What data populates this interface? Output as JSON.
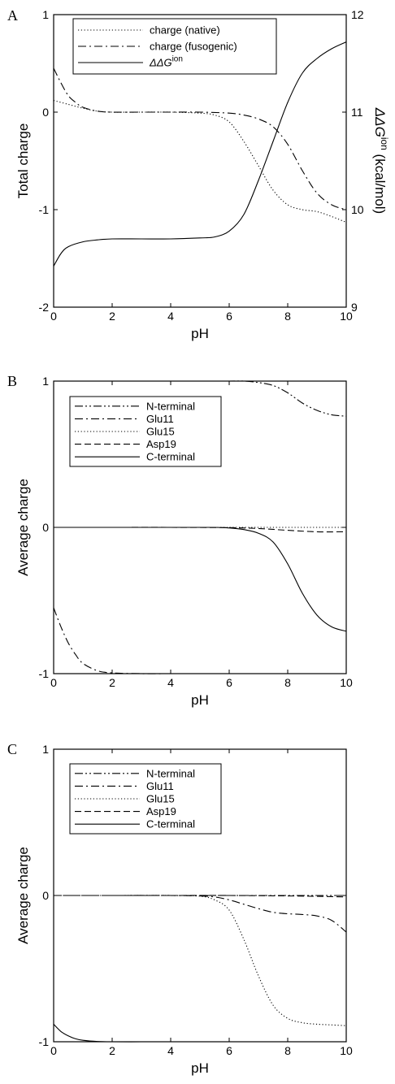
{
  "chart_data": [
    {
      "panel": "A",
      "type": "line",
      "xlabel": "pH",
      "ylabel": "Total charge",
      "y2label": "ΔΔG",
      "y2label_sup": "ion",
      "y2label_unit": " (kcal/mol)",
      "xlim": [
        0,
        10
      ],
      "ylim": [
        -2,
        1
      ],
      "y2lim": [
        9,
        12
      ],
      "xticks": [
        "0",
        "2",
        "4",
        "6",
        "8",
        "10"
      ],
      "yticks": [
        "-2",
        "-1",
        "0",
        "1"
      ],
      "y2ticks": [
        "9",
        "10",
        "11",
        "12"
      ],
      "legend_placement": "top-left",
      "series": [
        {
          "name": "charge (native)",
          "dash": "dot",
          "axis": "left",
          "x": [
            0,
            0.5,
            1,
            1.5,
            2,
            3,
            4,
            5,
            5.5,
            6,
            6.5,
            7,
            7.5,
            8,
            8.5,
            9,
            9.5,
            10
          ],
          "y": [
            0.12,
            0.08,
            0.04,
            0.01,
            0,
            0,
            0,
            -0.01,
            -0.03,
            -0.1,
            -0.3,
            -0.55,
            -0.8,
            -0.95,
            -1.0,
            -1.02,
            -1.07,
            -1.13
          ]
        },
        {
          "name": "charge (fusogenic)",
          "dash": "dashdot",
          "axis": "left",
          "x": [
            0,
            0.25,
            0.5,
            0.75,
            1,
            1.5,
            2,
            3,
            4,
            5,
            6,
            6.5,
            7,
            7.5,
            8,
            8.5,
            9,
            9.5,
            10
          ],
          "y": [
            0.45,
            0.3,
            0.17,
            0.1,
            0.05,
            0.01,
            0,
            0,
            0,
            0,
            -0.01,
            -0.03,
            -0.07,
            -0.15,
            -0.33,
            -0.6,
            -0.83,
            -0.95,
            -1.0
          ]
        },
        {
          "name": "ΔΔG",
          "name_sup": "ion",
          "dash": "solid",
          "axis": "right",
          "x": [
            0,
            0.25,
            0.5,
            1,
            1.5,
            2,
            3,
            4,
            5,
            5.5,
            6,
            6.5,
            7,
            7.5,
            8,
            8.5,
            9,
            9.5,
            10
          ],
          "y": [
            9.42,
            9.55,
            9.62,
            9.67,
            9.69,
            9.7,
            9.7,
            9.7,
            9.71,
            9.72,
            9.78,
            9.95,
            10.3,
            10.7,
            11.1,
            11.4,
            11.55,
            11.65,
            11.72
          ]
        }
      ]
    },
    {
      "panel": "B",
      "type": "line",
      "xlabel": "pH",
      "ylabel": "Average charge",
      "xlim": [
        0,
        10
      ],
      "ylim": [
        -1,
        1
      ],
      "xticks": [
        "0",
        "2",
        "4",
        "6",
        "8",
        "10"
      ],
      "yticks": [
        "-1",
        "0",
        "1"
      ],
      "legend_placement": "top-left",
      "series": [
        {
          "name": "N-terminal",
          "dash": "dashdotdot",
          "x": [
            4,
            5,
            6,
            6.5,
            7,
            7.5,
            8,
            8.5,
            9,
            9.5,
            10
          ],
          "y": [
            1.0,
            1.0,
            1.0,
            1.0,
            0.99,
            0.97,
            0.92,
            0.85,
            0.8,
            0.77,
            0.76
          ]
        },
        {
          "name": "Glu11",
          "dash": "dashdot",
          "x": [
            0,
            0.25,
            0.5,
            0.75,
            1,
            1.5,
            2,
            3,
            4,
            6,
            8,
            10
          ],
          "y": [
            -0.55,
            -0.68,
            -0.79,
            -0.87,
            -0.93,
            -0.98,
            -0.995,
            -1.0,
            -1.0,
            -1.0,
            -1.0,
            -1.0
          ]
        },
        {
          "name": "Glu15",
          "dash": "dot",
          "x": [
            0,
            2,
            4,
            6,
            8,
            9,
            10
          ],
          "y": [
            0,
            0,
            0,
            0,
            0,
            0,
            0
          ]
        },
        {
          "name": "Asp19",
          "dash": "dash",
          "x": [
            0,
            2,
            4,
            6,
            7,
            8,
            9,
            10
          ],
          "y": [
            0,
            0,
            0,
            -0.002,
            -0.008,
            -0.02,
            -0.03,
            -0.03
          ]
        },
        {
          "name": "C-terminal",
          "dash": "solid",
          "x": [
            0,
            2,
            4,
            5.5,
            6,
            6.5,
            7,
            7.5,
            8,
            8.5,
            9,
            9.5,
            10
          ],
          "y": [
            0,
            0,
            0,
            0,
            -0.004,
            -0.015,
            -0.04,
            -0.1,
            -0.25,
            -0.45,
            -0.6,
            -0.68,
            -0.71
          ]
        }
      ]
    },
    {
      "panel": "C",
      "type": "line",
      "xlabel": "pH",
      "ylabel": "Average charge",
      "xlim": [
        0,
        10
      ],
      "ylim": [
        -1,
        1
      ],
      "xticks": [
        "0",
        "2",
        "4",
        "6",
        "8",
        "10"
      ],
      "yticks": [
        "-1",
        "0",
        "1"
      ],
      "legend_placement": "top-left",
      "series": [
        {
          "name": "N-terminal",
          "dash": "dashdotdot",
          "x": [
            0,
            2,
            4,
            6,
            8,
            10
          ],
          "y": [
            0,
            0,
            0,
            0,
            0,
            0
          ]
        },
        {
          "name": "Glu11",
          "dash": "dashdot",
          "x": [
            0,
            2,
            4,
            5,
            5.5,
            6,
            6.5,
            7,
            7.5,
            8,
            8.5,
            9,
            9.5,
            10
          ],
          "y": [
            0,
            0,
            0,
            -0.003,
            -0.01,
            -0.03,
            -0.06,
            -0.09,
            -0.115,
            -0.125,
            -0.13,
            -0.14,
            -0.17,
            -0.25
          ]
        },
        {
          "name": "Glu15",
          "dash": "dot",
          "x": [
            0,
            2,
            4,
            5,
            5.5,
            6,
            6.5,
            7,
            7.5,
            8,
            8.5,
            9,
            9.5,
            10
          ],
          "y": [
            0,
            0,
            0,
            -0.005,
            -0.03,
            -0.1,
            -0.3,
            -0.55,
            -0.75,
            -0.84,
            -0.87,
            -0.88,
            -0.885,
            -0.89
          ]
        },
        {
          "name": "Asp19",
          "dash": "dash",
          "x": [
            0,
            2,
            4,
            6,
            8,
            9,
            10
          ],
          "y": [
            0,
            0,
            0,
            0,
            -0.003,
            -0.006,
            -0.01
          ]
        },
        {
          "name": "C-terminal",
          "dash": "solid",
          "x": [
            0,
            0.25,
            0.5,
            0.75,
            1,
            1.5,
            2,
            3,
            4
          ],
          "y": [
            -0.88,
            -0.93,
            -0.96,
            -0.98,
            -0.99,
            -0.998,
            -1.0,
            -1.0,
            -1.0
          ]
        }
      ]
    }
  ]
}
